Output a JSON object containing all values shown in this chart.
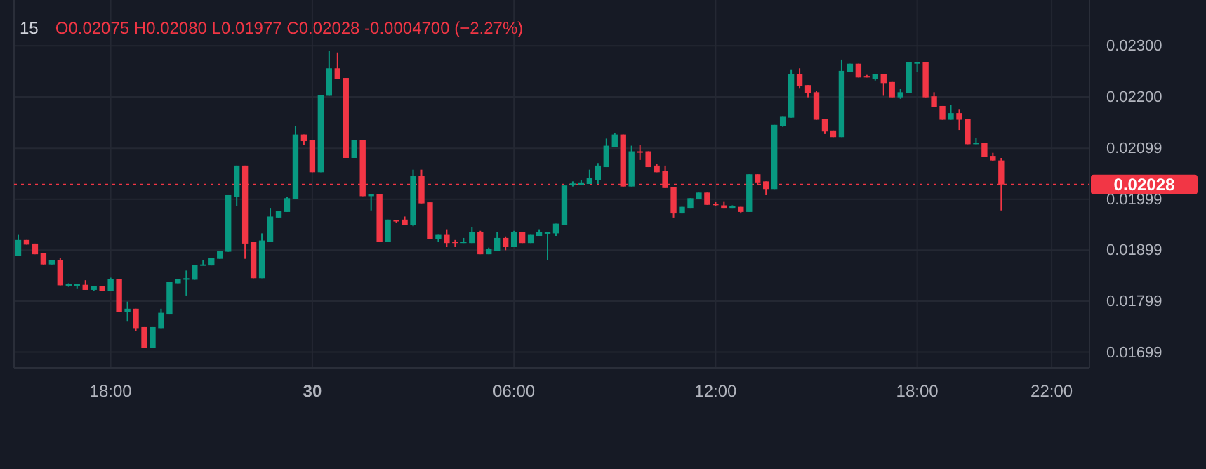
{
  "chart_data": {
    "type": "candlestick",
    "title": "15",
    "subtitle": "O0.02075 H0.02080 L0.01977 C0.02028 -0.0004700 (−2.27%)",
    "categories": [
      null,
      null,
      null,
      null,
      null,
      null,
      null,
      null,
      null,
      null,
      null,
      "18:00",
      null,
      null,
      null,
      null,
      null,
      null,
      null,
      null,
      null,
      null,
      null,
      null,
      null,
      null,
      null,
      null,
      null,
      null,
      null,
      null,
      null,
      null,
      null,
      "30",
      null,
      null,
      null,
      null,
      null,
      null,
      null,
      null,
      null,
      null,
      null,
      null,
      null,
      null,
      null,
      null,
      null,
      null,
      null,
      null,
      null,
      null,
      null,
      "06:00",
      null,
      null,
      null,
      null,
      null,
      null,
      null,
      null,
      null,
      null,
      null,
      null,
      null,
      null,
      null,
      null,
      null,
      null,
      null,
      null,
      null,
      null,
      null,
      "12:00",
      null,
      null,
      null,
      null,
      null,
      null,
      null,
      null,
      null,
      null,
      null,
      null,
      null,
      null,
      null,
      null,
      null,
      null,
      null,
      null,
      null,
      null,
      null,
      "18:00",
      null,
      null,
      null,
      null,
      null,
      null,
      null,
      null,
      null,
      null,
      null,
      null,
      null,
      null,
      null,
      "22:00",
      null,
      null,
      null,
      null
    ],
    "ohlc": [
      [
        0.01888,
        0.01929,
        0.01888,
        0.01919
      ],
      [
        0.01919,
        0.01919,
        0.0191,
        0.0191
      ],
      [
        0.01912,
        0.01912,
        0.01891,
        0.01891
      ],
      [
        0.01893,
        0.01893,
        0.01871,
        0.01871
      ],
      [
        0.01871,
        0.01879,
        0.01871,
        0.01879
      ],
      [
        0.01879,
        0.01884,
        0.0183,
        0.0183
      ],
      [
        0.0183,
        0.01834,
        0.01827,
        0.01832
      ],
      [
        0.0183,
        0.01832,
        0.01824,
        0.01832
      ],
      [
        0.01831,
        0.0184,
        0.01821,
        0.01821
      ],
      [
        0.01821,
        0.01829,
        0.01819,
        0.01829
      ],
      [
        0.01829,
        0.01829,
        0.01819,
        0.01819
      ],
      [
        0.01819,
        0.01845,
        0.01819,
        0.01843
      ],
      [
        0.01843,
        0.01843,
        0.01777,
        0.01777
      ],
      [
        0.01777,
        0.01798,
        0.0176,
        0.01784
      ],
      [
        0.01784,
        0.01784,
        0.01741,
        0.01746
      ],
      [
        0.01748,
        0.01748,
        0.01707,
        0.01707
      ],
      [
        0.01707,
        0.01748,
        0.01707,
        0.01748
      ],
      [
        0.01746,
        0.01784,
        0.01746,
        0.01776
      ],
      [
        0.01774,
        0.01837,
        0.01774,
        0.01837
      ],
      [
        0.01834,
        0.01843,
        0.01834,
        0.01843
      ],
      [
        0.01841,
        0.01859,
        0.0181,
        0.01844
      ],
      [
        0.01841,
        0.0187,
        0.01841,
        0.0187
      ],
      [
        0.01869,
        0.01879,
        0.01869,
        0.01871
      ],
      [
        0.01869,
        0.01884,
        0.01869,
        0.01884
      ],
      [
        0.01882,
        0.01898,
        0.01882,
        0.01898
      ],
      [
        0.01896,
        0.02007,
        0.01896,
        0.02007
      ],
      [
        0.02004,
        0.02065,
        0.01985,
        0.02065
      ],
      [
        0.02065,
        0.02065,
        0.01882,
        0.01912
      ],
      [
        0.01915,
        0.01915,
        0.01844,
        0.01844
      ],
      [
        0.01844,
        0.01932,
        0.01844,
        0.01918
      ],
      [
        0.01916,
        0.01982,
        0.01916,
        0.01965
      ],
      [
        0.01963,
        0.01976,
        0.01963,
        0.01976
      ],
      [
        0.01974,
        0.02004,
        0.01974,
        0.02001
      ],
      [
        0.01999,
        0.02143,
        0.01999,
        0.02126
      ],
      [
        0.02126,
        0.02126,
        0.02105,
        0.02113
      ],
      [
        0.02115,
        0.02115,
        0.02052,
        0.02052
      ],
      [
        0.02052,
        0.02204,
        0.02052,
        0.02204
      ],
      [
        0.02202,
        0.0229,
        0.02202,
        0.02256
      ],
      [
        0.02256,
        0.02287,
        0.02235,
        0.02235
      ],
      [
        0.02237,
        0.02237,
        0.0208,
        0.0208
      ],
      [
        0.0208,
        0.02115,
        0.0208,
        0.02115
      ],
      [
        0.02115,
        0.02115,
        0.02005,
        0.02005
      ],
      [
        0.02005,
        0.02009,
        0.01977,
        0.02009
      ],
      [
        0.02009,
        0.02009,
        0.01916,
        0.01916
      ],
      [
        0.01916,
        0.01959,
        0.01916,
        0.01959
      ],
      [
        0.01958,
        0.01958,
        0.01952,
        0.01956
      ],
      [
        0.01959,
        0.01965,
        0.01949,
        0.01949
      ],
      [
        0.01949,
        0.02057,
        0.01946,
        0.02045
      ],
      [
        0.02045,
        0.02057,
        0.01991,
        0.01991
      ],
      [
        0.01993,
        0.01993,
        0.01921,
        0.01921
      ],
      [
        0.01921,
        0.01929,
        0.01916,
        0.01929
      ],
      [
        0.01929,
        0.0194,
        0.01905,
        0.01913
      ],
      [
        0.01916,
        0.01919,
        0.01905,
        0.01913
      ],
      [
        0.01913,
        0.01923,
        0.01913,
        0.01916
      ],
      [
        0.01913,
        0.01945,
        0.01913,
        0.01934
      ],
      [
        0.01934,
        0.01937,
        0.01891,
        0.01891
      ],
      [
        0.01891,
        0.01904,
        0.01891,
        0.01901
      ],
      [
        0.01898,
        0.01934,
        0.01898,
        0.01923
      ],
      [
        0.01923,
        0.01926,
        0.01899,
        0.01905
      ],
      [
        0.01905,
        0.01937,
        0.01905,
        0.01934
      ],
      [
        0.01934,
        0.01934,
        0.01913,
        0.01913
      ],
      [
        0.01913,
        0.01929,
        0.01913,
        0.01929
      ],
      [
        0.01927,
        0.0194,
        0.01927,
        0.01934
      ],
      [
        0.01932,
        0.01934,
        0.0188,
        0.01934
      ],
      [
        0.01932,
        0.01951,
        0.01927,
        0.01951
      ],
      [
        0.01949,
        0.02026,
        0.01949,
        0.02026
      ],
      [
        0.02027,
        0.02034,
        0.02024,
        0.0203
      ],
      [
        0.02027,
        0.02037,
        0.02027,
        0.02032
      ],
      [
        0.02029,
        0.02057,
        0.02029,
        0.0204
      ],
      [
        0.02037,
        0.0207,
        0.02029,
        0.02065
      ],
      [
        0.02062,
        0.02118,
        0.02062,
        0.02104
      ],
      [
        0.02101,
        0.02129,
        0.02101,
        0.02126
      ],
      [
        0.02126,
        0.02126,
        0.02024,
        0.02024
      ],
      [
        0.02024,
        0.02104,
        0.02024,
        0.02093
      ],
      [
        0.02093,
        0.02106,
        0.02076,
        0.02091
      ],
      [
        0.02093,
        0.02093,
        0.02062,
        0.02062
      ],
      [
        0.02065,
        0.02068,
        0.02052,
        0.02052
      ],
      [
        0.02054,
        0.02065,
        0.02021,
        0.02021
      ],
      [
        0.02023,
        0.02023,
        0.01963,
        0.01971
      ],
      [
        0.01971,
        0.01984,
        0.01971,
        0.01984
      ],
      [
        0.01982,
        0.02001,
        0.01982,
        0.02001
      ],
      [
        0.01999,
        0.02012,
        0.01999,
        0.02012
      ],
      [
        0.02012,
        0.02012,
        0.01988,
        0.01988
      ],
      [
        0.0199,
        0.01994,
        0.01985,
        0.01988
      ],
      [
        0.01987,
        0.01995,
        0.01982,
        0.01982
      ],
      [
        0.01982,
        0.01987,
        0.01982,
        0.01985
      ],
      [
        0.01984,
        0.01984,
        0.01971,
        0.01974
      ],
      [
        0.01974,
        0.02048,
        0.01974,
        0.02048
      ],
      [
        0.02048,
        0.02048,
        0.02027,
        0.02032
      ],
      [
        0.02034,
        0.02034,
        0.02007,
        0.02019
      ],
      [
        0.02019,
        0.02145,
        0.02019,
        0.02145
      ],
      [
        0.02143,
        0.02162,
        0.02141,
        0.02162
      ],
      [
        0.02159,
        0.02254,
        0.02159,
        0.02245
      ],
      [
        0.02245,
        0.02256,
        0.02216,
        0.02221
      ],
      [
        0.02223,
        0.02223,
        0.02199,
        0.02207
      ],
      [
        0.02209,
        0.02212,
        0.02155,
        0.02155
      ],
      [
        0.02157,
        0.02157,
        0.02127,
        0.02132
      ],
      [
        0.02134,
        0.02134,
        0.02121,
        0.02121
      ],
      [
        0.02121,
        0.02273,
        0.02121,
        0.02251
      ],
      [
        0.02249,
        0.02265,
        0.02249,
        0.02265
      ],
      [
        0.02265,
        0.02265,
        0.02238,
        0.02238
      ],
      [
        0.02241,
        0.02243,
        0.02238,
        0.02238
      ],
      [
        0.02235,
        0.02245,
        0.02232,
        0.02245
      ],
      [
        0.02245,
        0.02245,
        0.02202,
        0.02227
      ],
      [
        0.02229,
        0.02229,
        0.02199,
        0.02199
      ],
      [
        0.02199,
        0.02215,
        0.02196,
        0.02209
      ],
      [
        0.02207,
        0.02268,
        0.02207,
        0.02268
      ],
      [
        0.02265,
        0.02268,
        0.02248,
        0.02268
      ],
      [
        0.02268,
        0.02268,
        0.02199,
        0.02199
      ],
      [
        0.02201,
        0.02209,
        0.0218,
        0.0218
      ],
      [
        0.02182,
        0.02182,
        0.02155,
        0.02155
      ],
      [
        0.02155,
        0.02184,
        0.02155,
        0.02168
      ],
      [
        0.02168,
        0.02176,
        0.02135,
        0.02155
      ],
      [
        0.02157,
        0.02157,
        0.02107,
        0.02107
      ],
      [
        0.02107,
        0.0212,
        0.02107,
        0.0211
      ],
      [
        0.02109,
        0.02109,
        0.02082,
        0.02082
      ],
      [
        0.02084,
        0.0209,
        0.02074,
        0.02075
      ],
      [
        0.02075,
        0.0208,
        0.01977,
        0.02028
      ],
      null,
      null,
      null,
      null,
      null,
      null,
      null,
      null,
      null,
      null
    ],
    "ylim": [
      0.01668,
      0.0239
    ],
    "yticks": [
      {
        "value": 0.023,
        "label": "0.02300"
      },
      {
        "value": 0.022,
        "label": "0.02200"
      },
      0.02099,
      0.01999,
      0.01899,
      0.01799,
      0.01699
    ],
    "grid": true,
    "ref_lines": [
      {
        "axis": "y",
        "value": 0.02028,
        "label": "0.02028",
        "color": "#f23645",
        "line_style": "dotted"
      }
    ]
  }
}
